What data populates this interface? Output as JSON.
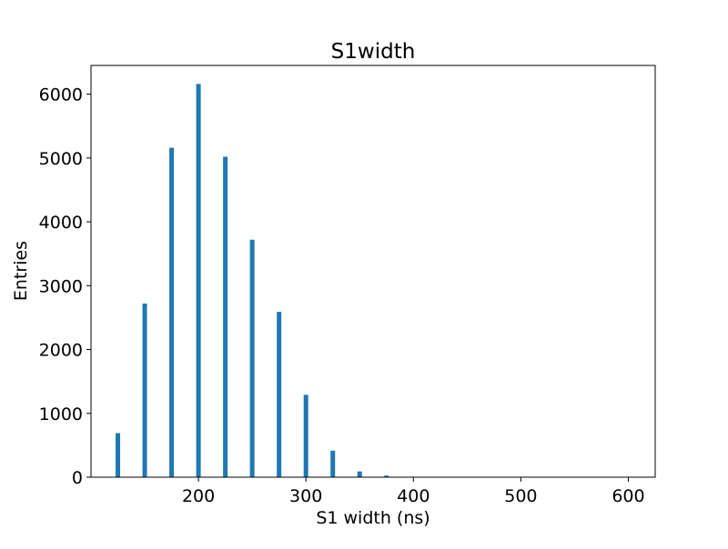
{
  "chart_data": {
    "type": "bar",
    "title": "S1width",
    "xlabel": "S1 width (ns)",
    "ylabel": "Entries",
    "xlim": [
      100,
      625
    ],
    "ylim": [
      0,
      6450
    ],
    "xticks": [
      200,
      300,
      400,
      500,
      600
    ],
    "yticks": [
      0,
      1000,
      2000,
      3000,
      4000,
      5000,
      6000
    ],
    "grid": false,
    "bar_width": 5,
    "bar_color": "#1f77b4",
    "series": [
      {
        "x": [
          125,
          150,
          175,
          200,
          225,
          250,
          275,
          300,
          325,
          350,
          375
        ],
        "values": [
          690,
          2720,
          5160,
          6160,
          5020,
          3720,
          2590,
          1290,
          415,
          90,
          25
        ]
      }
    ]
  }
}
